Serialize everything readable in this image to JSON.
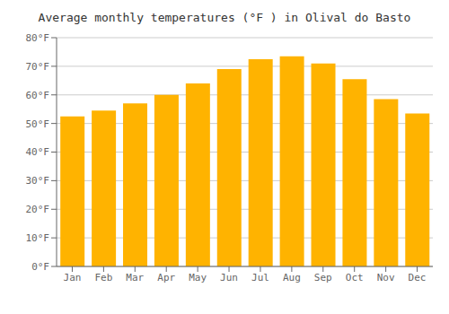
{
  "chart_data": {
    "type": "bar",
    "title": "Average monthly temperatures (°F ) in Olival do Basto",
    "categories": [
      "Jan",
      "Feb",
      "Mar",
      "Apr",
      "May",
      "Jun",
      "Jul",
      "Aug",
      "Sep",
      "Oct",
      "Nov",
      "Dec"
    ],
    "values": [
      52.5,
      54.5,
      57.0,
      60.0,
      64.0,
      69.0,
      72.5,
      73.5,
      71.0,
      65.5,
      58.5,
      53.5
    ],
    "color": "#FFB300",
    "ylim": [
      0,
      80
    ],
    "yticks": [
      {
        "value": 0,
        "label": "0°F"
      },
      {
        "value": 10,
        "label": "10°F"
      },
      {
        "value": 20,
        "label": "20°F"
      },
      {
        "value": 30,
        "label": "30°F"
      },
      {
        "value": 40,
        "label": "40°F"
      },
      {
        "value": 50,
        "label": "50°F"
      },
      {
        "value": 60,
        "label": "60°F"
      },
      {
        "value": 70,
        "label": "70°F"
      },
      {
        "value": 80,
        "label": "80°F"
      }
    ],
    "grid": true
  }
}
